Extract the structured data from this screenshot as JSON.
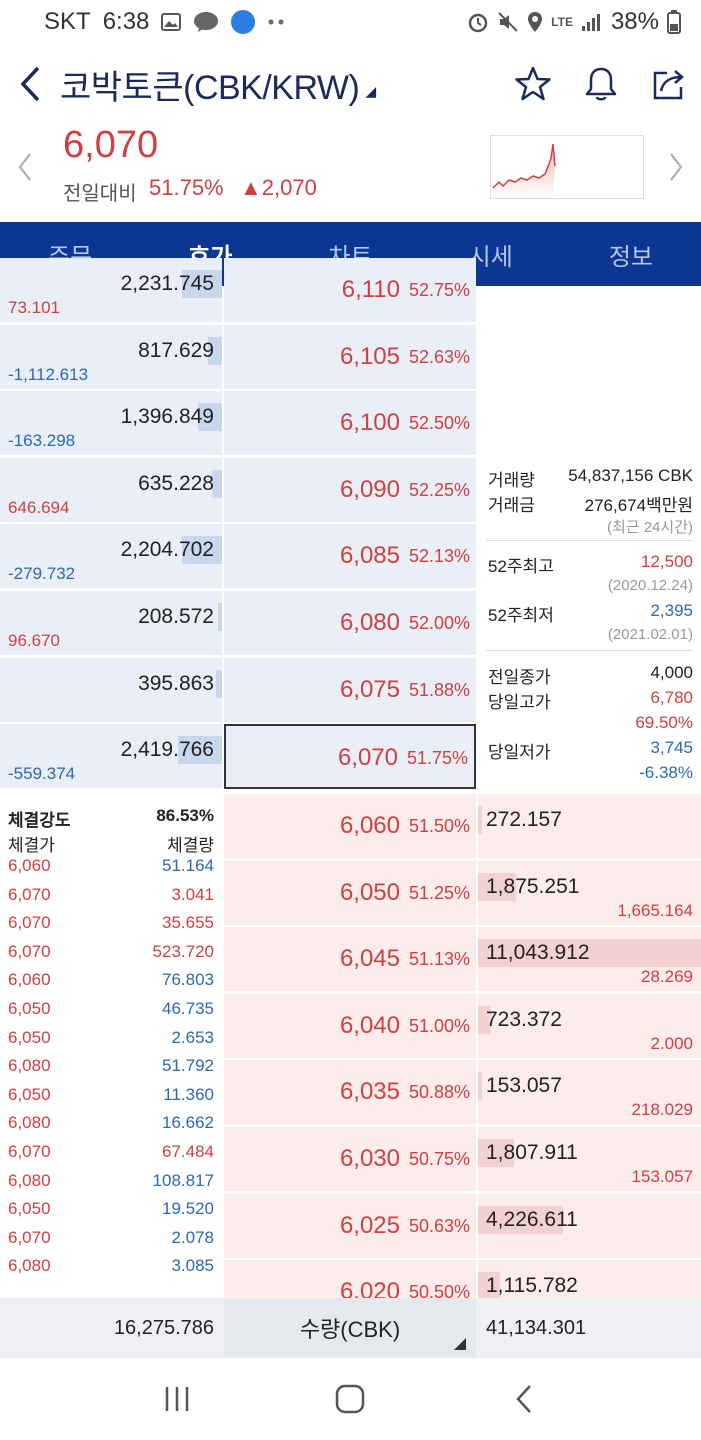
{
  "status": {
    "carrier": "SKT",
    "time": "6:38",
    "battery": "38%",
    "network": "LTE"
  },
  "header": {
    "title": "코박토큰(CBK/KRW)"
  },
  "summary": {
    "price": "6,070",
    "change_label": "전일대비",
    "change_pct": "51.75%",
    "change_amt": "▲2,070"
  },
  "tabs": [
    {
      "label": "주문"
    },
    {
      "label": "호가"
    },
    {
      "label": "차트"
    },
    {
      "label": "시세"
    },
    {
      "label": "정보"
    }
  ],
  "asks": [
    {
      "qty": "2,231.745",
      "sub": "73.101",
      "sub_color": "red",
      "price": "6,110",
      "pct": "52.75%",
      "bar": 0.2
    },
    {
      "qty": "817.629",
      "sub": "-1,112.613",
      "sub_color": "blue",
      "price": "6,105",
      "pct": "52.63%",
      "bar": 0.07
    },
    {
      "qty": "1,396.849",
      "sub": "-163.298",
      "sub_color": "blue",
      "price": "6,100",
      "pct": "52.50%",
      "bar": 0.12
    },
    {
      "qty": "635.228",
      "sub": "646.694",
      "sub_color": "red",
      "price": "6,090",
      "pct": "52.25%",
      "bar": 0.05
    },
    {
      "qty": "2,204.702",
      "sub": "-279.732",
      "sub_color": "blue",
      "price": "6,085",
      "pct": "52.13%",
      "bar": 0.2
    },
    {
      "qty": "208.572",
      "sub": "96.670",
      "sub_color": "red",
      "price": "6,080",
      "pct": "52.00%",
      "bar": 0.02
    },
    {
      "qty": "395.863",
      "sub": "",
      "sub_color": "red",
      "price": "6,075",
      "pct": "51.88%",
      "bar": 0.03
    },
    {
      "qty": "2,419.766",
      "sub": "-559.374",
      "sub_color": "blue",
      "price": "6,070",
      "pct": "51.75%",
      "bar": 0.22
    }
  ],
  "bids": [
    {
      "qty": "272.157",
      "sub": "",
      "price": "6,060",
      "pct": "51.50%",
      "bar": 0.02
    },
    {
      "qty": "1,875.251",
      "sub": "1,665.164",
      "price": "6,050",
      "pct": "51.25%",
      "bar": 0.17
    },
    {
      "qty": "11,043.912",
      "sub": "28.269",
      "price": "6,045",
      "pct": "51.13%",
      "bar": 1.0
    },
    {
      "qty": "723.372",
      "sub": "2.000",
      "price": "6,040",
      "pct": "51.00%",
      "bar": 0.06
    },
    {
      "qty": "153.057",
      "sub": "218.029",
      "price": "6,035",
      "pct": "50.88%",
      "bar": 0.01
    },
    {
      "qty": "1,807.911",
      "sub": "153.057",
      "price": "6,030",
      "pct": "50.75%",
      "bar": 0.16
    },
    {
      "qty": "4,226.611",
      "sub": "",
      "price": "6,025",
      "pct": "50.63%",
      "bar": 0.38
    },
    {
      "qty": "1,115.782",
      "sub": "",
      "price": "6,020",
      "pct": "50.50%",
      "bar": 0.1
    }
  ],
  "info": {
    "volume_label": "거래량",
    "volume": "54,837,156 CBK",
    "amount_label": "거래금",
    "amount": "276,674백만원",
    "period": "(최근 24시간)",
    "high52_label": "52주최고",
    "high52": "12,500",
    "high52_date": "(2020.12.24)",
    "low52_label": "52주최저",
    "low52": "2,395",
    "low52_date": "(2021.02.01)",
    "prev_close_label": "전일종가",
    "prev_close": "4,000",
    "day_high_label": "당일고가",
    "day_high": "6,780",
    "day_high_pct": "69.50%",
    "day_low_label": "당일저가",
    "day_low": "3,745",
    "day_low_pct": "-6.38%"
  },
  "trades": {
    "strength_label": "체결강도",
    "strength": "86.53%",
    "price_label": "체결가",
    "qty_label": "체결량",
    "rows": [
      {
        "p": "6,060",
        "q": "51.164",
        "c": "blue"
      },
      {
        "p": "6,070",
        "q": "3.041",
        "c": "red"
      },
      {
        "p": "6,070",
        "q": "35.655",
        "c": "red"
      },
      {
        "p": "6,070",
        "q": "523.720",
        "c": "red"
      },
      {
        "p": "6,060",
        "q": "76.803",
        "c": "blue"
      },
      {
        "p": "6,050",
        "q": "46.735",
        "c": "blue"
      },
      {
        "p": "6,050",
        "q": "2.653",
        "c": "blue"
      },
      {
        "p": "6,080",
        "q": "51.792",
        "c": "blue"
      },
      {
        "p": "6,050",
        "q": "11.360",
        "c": "blue"
      },
      {
        "p": "6,080",
        "q": "16.662",
        "c": "blue"
      },
      {
        "p": "6,070",
        "q": "67.484",
        "c": "red"
      },
      {
        "p": "6,080",
        "q": "108.817",
        "c": "blue"
      },
      {
        "p": "6,050",
        "q": "19.520",
        "c": "blue"
      },
      {
        "p": "6,070",
        "q": "2.078",
        "c": "blue"
      },
      {
        "p": "6,080",
        "q": "3.085",
        "c": "blue"
      }
    ]
  },
  "footer": {
    "ask_total": "16,275.786",
    "unit_label": "수량(CBK)",
    "bid_total": "41,134.301"
  },
  "colors": {
    "up": "#d0403f",
    "down": "#2a6ab0",
    "tab_bg": "#0b3793"
  }
}
